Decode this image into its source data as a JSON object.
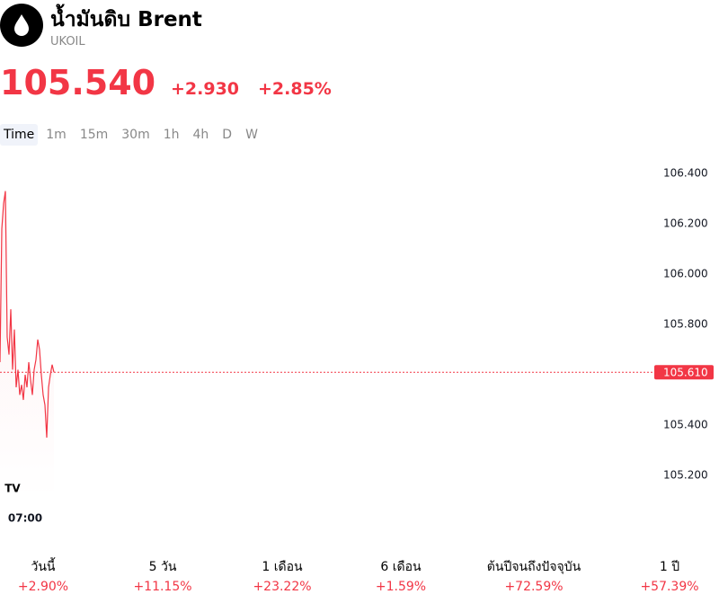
{
  "header": {
    "title": "น้ำมันดิบ Brent",
    "symbol": "UKOIL",
    "price": "105.540",
    "change": "+2.930",
    "change_pct": "+2.85%"
  },
  "tabs": [
    "Time",
    "1m",
    "15m",
    "30m",
    "1h",
    "4h",
    "D",
    "W"
  ],
  "chart_data": {
    "type": "line",
    "color": "#f23645",
    "categories": [
      null,
      null,
      null,
      null,
      null,
      null,
      null,
      null,
      null,
      null,
      null,
      null,
      null,
      null,
      "07:00",
      null,
      null,
      null,
      null,
      null,
      null,
      null,
      null,
      null,
      null,
      null,
      null,
      null,
      null,
      null,
      null
    ],
    "values": [
      105.65,
      106.18,
      106.28,
      106.33,
      105.75,
      105.68,
      105.86,
      105.62,
      105.78,
      105.55,
      105.62,
      105.52,
      105.56,
      105.5,
      105.6,
      105.55,
      105.65,
      105.58,
      105.52,
      105.62,
      105.66,
      105.74,
      105.7,
      105.6,
      105.52,
      105.48,
      105.35,
      105.55,
      105.6,
      105.64,
      105.61
    ],
    "ylim": [
      105.06,
      106.46
    ],
    "yticks": [
      {
        "value": 105.2,
        "label": "105.200"
      },
      {
        "value": 105.4,
        "label": "105.400"
      },
      {
        "value": 105.8,
        "label": "105.800"
      },
      {
        "value": 106.0,
        "label": "106.000"
      },
      {
        "value": 106.2,
        "label": "106.200"
      },
      {
        "value": 106.4,
        "label": "106.400"
      }
    ],
    "last_price": {
      "value": 105.61,
      "label": "105.610"
    }
  },
  "performance": [
    {
      "period": "วันนี้",
      "value": "+2.90%"
    },
    {
      "period": "5 วัน",
      "value": "+11.15%"
    },
    {
      "period": "1 เดือน",
      "value": "+23.22%"
    },
    {
      "period": "6 เดือน",
      "value": "+1.59%"
    },
    {
      "period": "ต้นปีจนถึงปัจจุบัน",
      "value": "+72.59%"
    },
    {
      "period": "1 ปี",
      "value": "+57.39%"
    }
  ]
}
